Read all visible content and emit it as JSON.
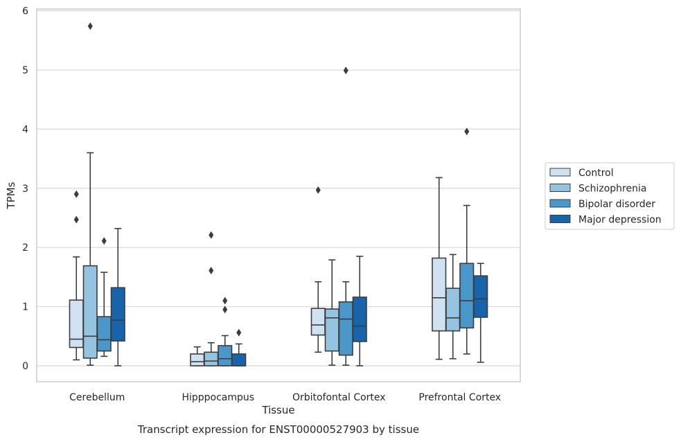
{
  "caption": "Transcript expression for ENST00000527903 by tissue",
  "chart_data": {
    "type": "boxplot",
    "xlabel": "Tissue",
    "ylabel": "TPMs",
    "ylim": [
      -0.28,
      6.02
    ],
    "yticks": [
      "0",
      "1",
      "2",
      "3",
      "4",
      "5",
      "6"
    ],
    "grid": "horizontal",
    "legend_position": "right",
    "categories": [
      "Cerebellum",
      "Hipppocampus",
      "Orbitofontal Cortex",
      "Prefrontal Cortex"
    ],
    "series": [
      {
        "name": "Control",
        "color": "#d0e1f2",
        "boxes": [
          {
            "whisker_low": 0.1,
            "q1": 0.31,
            "median": 0.45,
            "q3": 1.11,
            "whisker_high": 1.84,
            "outliers": [
              2.47,
              2.9
            ]
          },
          {
            "whisker_low": 0.0,
            "q1": 0.0,
            "median": 0.07,
            "q3": 0.2,
            "whisker_high": 0.32,
            "outliers": []
          },
          {
            "whisker_low": 0.23,
            "q1": 0.52,
            "median": 0.69,
            "q3": 0.97,
            "whisker_high": 1.42,
            "outliers": [
              2.97
            ]
          },
          {
            "whisker_low": 0.11,
            "q1": 0.59,
            "median": 1.15,
            "q3": 1.82,
            "whisker_high": 3.18,
            "outliers": []
          }
        ]
      },
      {
        "name": "Schizophrenia",
        "color": "#94c4df",
        "boxes": [
          {
            "whisker_low": 0.01,
            "q1": 0.13,
            "median": 0.5,
            "q3": 1.69,
            "whisker_high": 3.6,
            "outliers": [
              5.74
            ]
          },
          {
            "whisker_low": 0.0,
            "q1": 0.0,
            "median": 0.08,
            "q3": 0.23,
            "whisker_high": 0.39,
            "outliers": [
              1.61,
              2.21
            ]
          },
          {
            "whisker_low": 0.01,
            "q1": 0.25,
            "median": 0.81,
            "q3": 0.96,
            "whisker_high": 1.79,
            "outliers": []
          },
          {
            "whisker_low": 0.12,
            "q1": 0.59,
            "median": 0.81,
            "q3": 1.31,
            "whisker_high": 1.88,
            "outliers": []
          }
        ]
      },
      {
        "name": "Bipolar disorder",
        "color": "#4a98c9",
        "boxes": [
          {
            "whisker_low": 0.16,
            "q1": 0.25,
            "median": 0.44,
            "q3": 0.83,
            "whisker_high": 1.58,
            "outliers": [
              2.11
            ]
          },
          {
            "whisker_low": 0.0,
            "q1": 0.0,
            "median": 0.12,
            "q3": 0.34,
            "whisker_high": 0.51,
            "outliers": [
              0.95,
              1.1
            ]
          },
          {
            "whisker_low": 0.01,
            "q1": 0.18,
            "median": 0.79,
            "q3": 1.08,
            "whisker_high": 1.42,
            "outliers": [
              4.99
            ]
          },
          {
            "whisker_low": 0.2,
            "q1": 0.64,
            "median": 1.1,
            "q3": 1.73,
            "whisker_high": 2.71,
            "outliers": [
              3.96
            ]
          }
        ]
      },
      {
        "name": "Major depression",
        "color": "#1764ab",
        "boxes": [
          {
            "whisker_low": 0.0,
            "q1": 0.42,
            "median": 0.77,
            "q3": 1.32,
            "whisker_high": 2.32,
            "outliers": []
          },
          {
            "whisker_low": 0.0,
            "q1": 0.0,
            "median": 0.0,
            "q3": 0.2,
            "whisker_high": 0.37,
            "outliers": [
              0.56
            ]
          },
          {
            "whisker_low": 0.0,
            "q1": 0.41,
            "median": 0.67,
            "q3": 1.16,
            "whisker_high": 1.85,
            "outliers": []
          },
          {
            "whisker_low": 0.06,
            "q1": 0.82,
            "median": 1.13,
            "q3": 1.52,
            "whisker_high": 1.73,
            "outliers": []
          }
        ]
      }
    ]
  }
}
